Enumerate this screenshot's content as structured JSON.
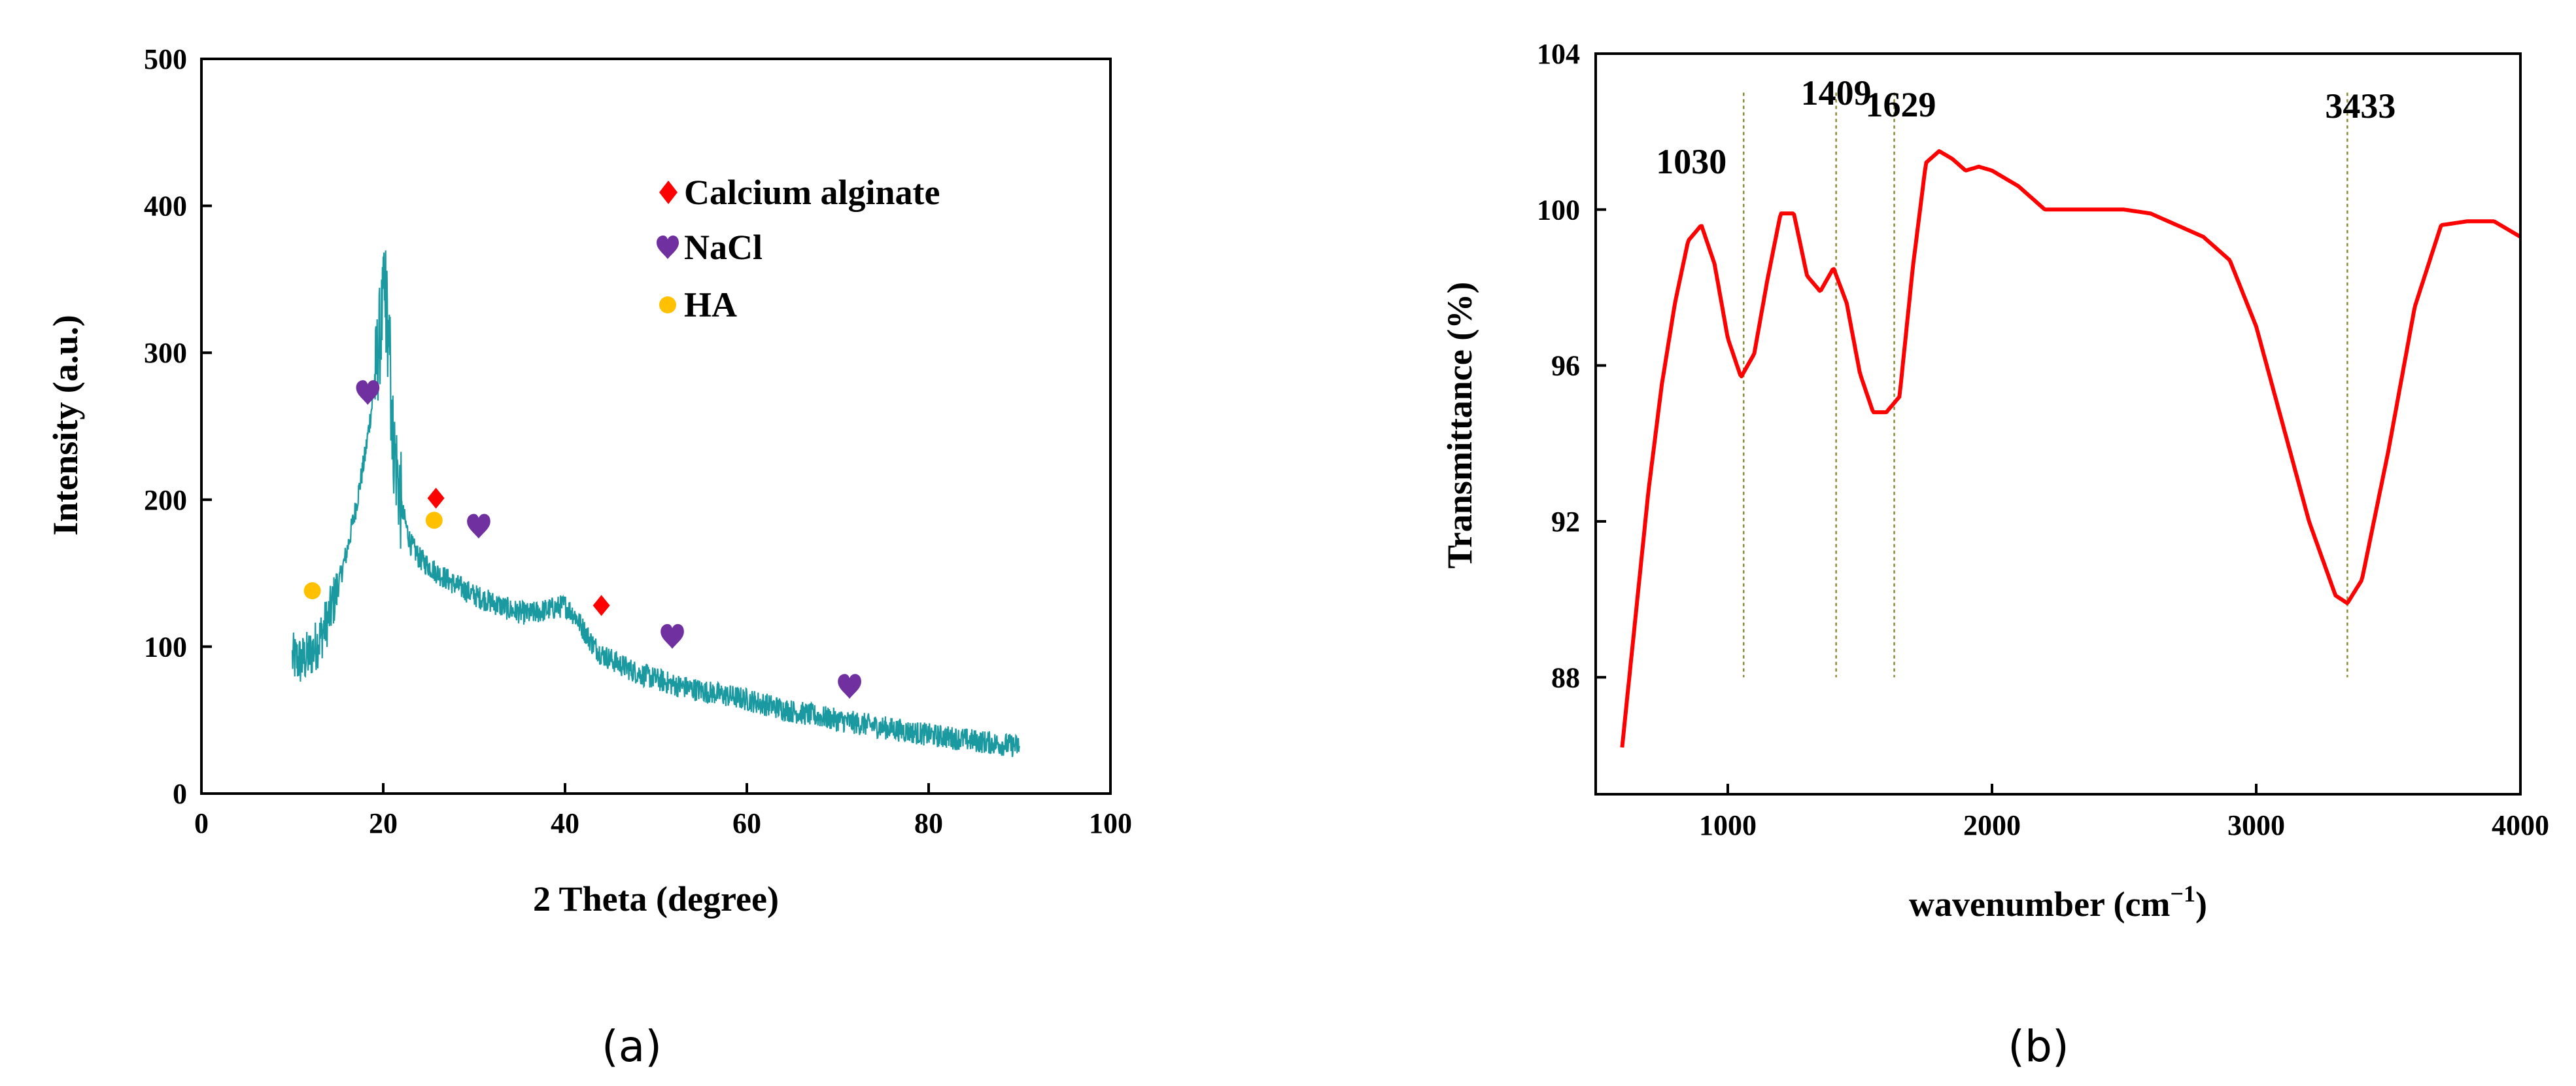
{
  "colors": {
    "xrd_trace": "#1a9aa0",
    "ftir_trace": "#ff0000",
    "calcium_alginate": "#ff0000",
    "nacl": "#7030a0",
    "ha": "#ffc000",
    "peak_line": "#8b8b3a"
  },
  "chart_data": [
    {
      "type": "line",
      "panel_label": "(a)",
      "xlabel": "2 Theta (degree)",
      "ylabel": "Intensity (a.u.)",
      "xlim": [
        0,
        100
      ],
      "ylim": [
        0,
        500
      ],
      "xticks": [
        0,
        20,
        40,
        60,
        80,
        100
      ],
      "yticks": [
        0,
        100,
        200,
        300,
        400,
        500
      ],
      "xtick_labels": [
        "0",
        "20",
        "40",
        "60",
        "80",
        "100"
      ],
      "ytick_labels": [
        "0",
        "100",
        "200",
        "300",
        "400",
        "500"
      ],
      "legend": [
        {
          "label": "Calcium alginate",
          "marker": "diamond",
          "color": "#ff0000"
        },
        {
          "label": "NaCl",
          "marker": "heart",
          "color": "#7030a0"
        },
        {
          "label": "HA",
          "marker": "circle",
          "color": "#ffc000"
        }
      ],
      "legend_position": "top-right",
      "series": [
        {
          "name": "XRD pattern",
          "x": [
            10,
            11,
            12,
            13,
            14,
            15,
            16,
            17,
            18,
            19,
            19.5,
            20,
            20.5,
            21,
            22,
            23,
            24,
            25,
            26,
            28,
            30,
            32,
            34,
            36,
            38,
            40,
            41,
            42,
            43,
            44,
            46,
            48,
            50,
            52,
            55,
            60,
            65,
            70,
            75,
            80,
            85,
            90
          ],
          "y": [
            92,
            90,
            95,
            105,
            120,
            140,
            165,
            195,
            230,
            275,
            305,
            330,
            300,
            245,
            195,
            170,
            160,
            155,
            150,
            142,
            135,
            130,
            125,
            122,
            125,
            128,
            122,
            112,
            102,
            95,
            88,
            82,
            78,
            74,
            70,
            64,
            56,
            50,
            45,
            40,
            36,
            32
          ]
        }
      ],
      "markers": [
        {
          "phase": "Calcium alginate",
          "marker": "diamond",
          "x": 25.8,
          "y": 201
        },
        {
          "phase": "Calcium alginate",
          "marker": "diamond",
          "x": 44,
          "y": 128
        },
        {
          "phase": "NaCl",
          "marker": "heart",
          "x": 18.3,
          "y": 272
        },
        {
          "phase": "NaCl",
          "marker": "heart",
          "x": 30.5,
          "y": 181
        },
        {
          "phase": "NaCl",
          "marker": "heart",
          "x": 51.8,
          "y": 106
        },
        {
          "phase": "NaCl",
          "marker": "heart",
          "x": 71.3,
          "y": 72
        },
        {
          "phase": "HA",
          "marker": "circle",
          "x": 12.2,
          "y": 138
        },
        {
          "phase": "HA",
          "marker": "circle",
          "x": 25.6,
          "y": 186
        }
      ]
    },
    {
      "type": "line",
      "panel_label": "(b)",
      "xlabel": "wavenumber (cm",
      "xlabel_sup": "−1",
      "xlabel_end": ")",
      "ylabel": "Transmittance (%)",
      "xlim": [
        500,
        4000
      ],
      "ylim": [
        85,
        104
      ],
      "xticks": [
        1000,
        2000,
        3000,
        4000
      ],
      "yticks": [
        88,
        92,
        96,
        100,
        104
      ],
      "xtick_labels": [
        "1000",
        "2000",
        "3000",
        "4000"
      ],
      "ytick_labels": [
        "88",
        "92",
        "96",
        "100",
        "104"
      ],
      "peaks": [
        {
          "label": "1030",
          "x": 1060
        },
        {
          "label": "1409",
          "x": 1410
        },
        {
          "label": "1629",
          "x": 1630
        },
        {
          "label": "3433",
          "x": 3345
        }
      ],
      "series": [
        {
          "name": "FTIR spectrum",
          "x": [
            600,
            650,
            700,
            750,
            800,
            850,
            900,
            950,
            1000,
            1050,
            1100,
            1150,
            1200,
            1250,
            1300,
            1350,
            1400,
            1450,
            1500,
            1550,
            1600,
            1650,
            1700,
            1750,
            1800,
            1850,
            1900,
            1950,
            2000,
            2100,
            2200,
            2300,
            2400,
            2500,
            2600,
            2700,
            2800,
            2900,
            3000,
            3100,
            3200,
            3300,
            3345,
            3400,
            3500,
            3600,
            3700,
            3800,
            3900,
            4000
          ],
          "y": [
            86.2,
            89.5,
            92.8,
            95.5,
            97.6,
            99.2,
            99.6,
            98.6,
            96.7,
            95.7,
            96.3,
            98.2,
            99.9,
            99.9,
            98.3,
            97.9,
            98.5,
            97.6,
            95.8,
            94.8,
            94.8,
            95.2,
            98.5,
            101.2,
            101.5,
            101.3,
            101.0,
            101.1,
            101.0,
            100.6,
            100.0,
            100.0,
            100.0,
            100.0,
            99.9,
            99.6,
            99.3,
            98.7,
            97.0,
            94.5,
            92.0,
            90.1,
            89.9,
            90.5,
            93.8,
            97.5,
            99.6,
            99.7,
            99.7,
            99.3
          ]
        }
      ]
    }
  ]
}
